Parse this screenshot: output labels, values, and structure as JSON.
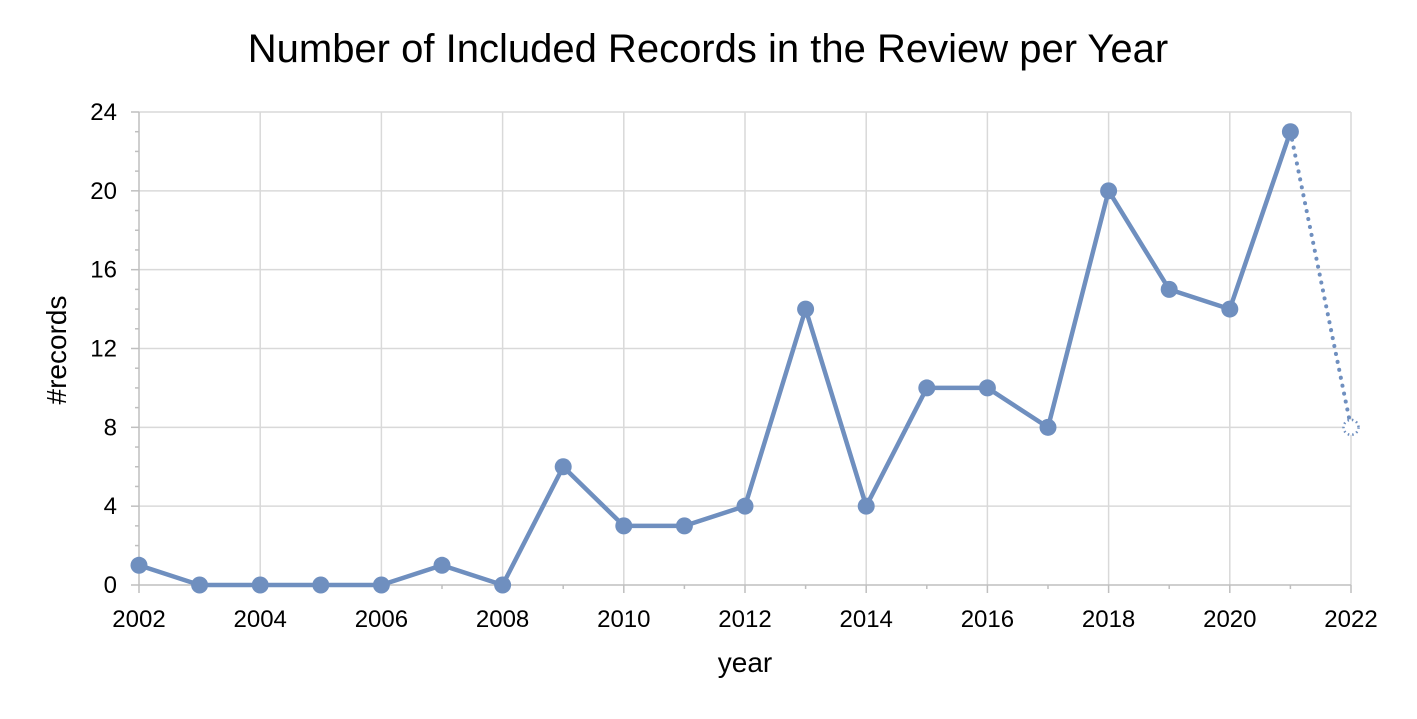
{
  "chart_data": {
    "type": "line",
    "title": "Number of Included Records in the Review per Year",
    "xlabel": "year",
    "ylabel": "#records",
    "xlim": [
      2002,
      2022
    ],
    "ylim": [
      0,
      24
    ],
    "x_ticks": [
      "2002",
      "2004",
      "2006",
      "2008",
      "2010",
      "2012",
      "2014",
      "2016",
      "2018",
      "2020",
      "2022"
    ],
    "y_ticks": [
      "0",
      "4",
      "8",
      "12",
      "16",
      "20",
      "24"
    ],
    "grid": true,
    "line_color": "#6f8fbf",
    "series": [
      {
        "style": "solid",
        "x": [
          2002,
          2003,
          2004,
          2005,
          2006,
          2007,
          2008,
          2009,
          2010,
          2011,
          2012,
          2013,
          2014,
          2015,
          2016,
          2017,
          2018,
          2019,
          2020,
          2021
        ],
        "values": [
          1,
          0,
          0,
          0,
          0,
          1,
          0,
          6,
          3,
          3,
          4,
          14,
          4,
          10,
          10,
          8,
          20,
          15,
          14,
          23
        ]
      },
      {
        "style": "dotted",
        "x": [
          2021,
          2022
        ],
        "values": [
          23,
          8
        ]
      }
    ]
  }
}
